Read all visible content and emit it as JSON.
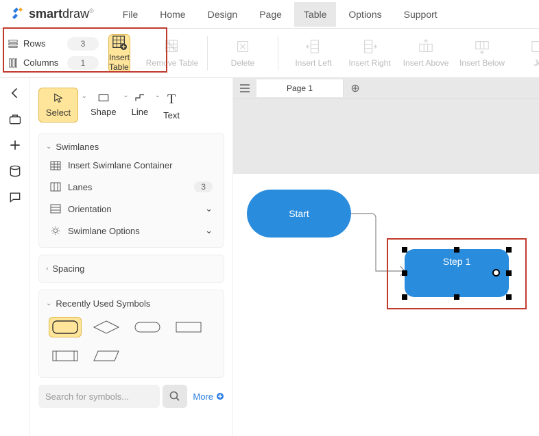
{
  "brand": {
    "name_bold": "smart",
    "name_rest": "draw"
  },
  "menu": [
    "File",
    "Home",
    "Design",
    "Page",
    "Table",
    "Options",
    "Support"
  ],
  "menu_active": 4,
  "ribbon": {
    "rows_label": "Rows",
    "rows_value": "3",
    "cols_label": "Columns",
    "cols_value": "1",
    "insert_table": "Insert Table",
    "items": [
      "Remove Table",
      "Delete",
      "Insert Left",
      "Insert Right",
      "Insert Above",
      "Insert Below",
      "Jo"
    ]
  },
  "tools": {
    "select": "Select",
    "shape": "Shape",
    "line": "Line",
    "text": "Text"
  },
  "swimlanes": {
    "title": "Swimlanes",
    "insert": "Insert Swimlane Container",
    "lanes": "Lanes",
    "lanes_value": "3",
    "orientation": "Orientation",
    "options": "Swimlane Options"
  },
  "spacing": "Spacing",
  "recent": "Recently Used Symbols",
  "search_placeholder": "Search for symbols...",
  "more": "More",
  "tab": "Page 1",
  "nodes": {
    "start": "Start",
    "step": "Step  1"
  },
  "colors": {
    "accent": "#ffe59a",
    "accent_border": "#e0b94d",
    "node": "#2a8cdd",
    "highlight": "#c0392b"
  }
}
